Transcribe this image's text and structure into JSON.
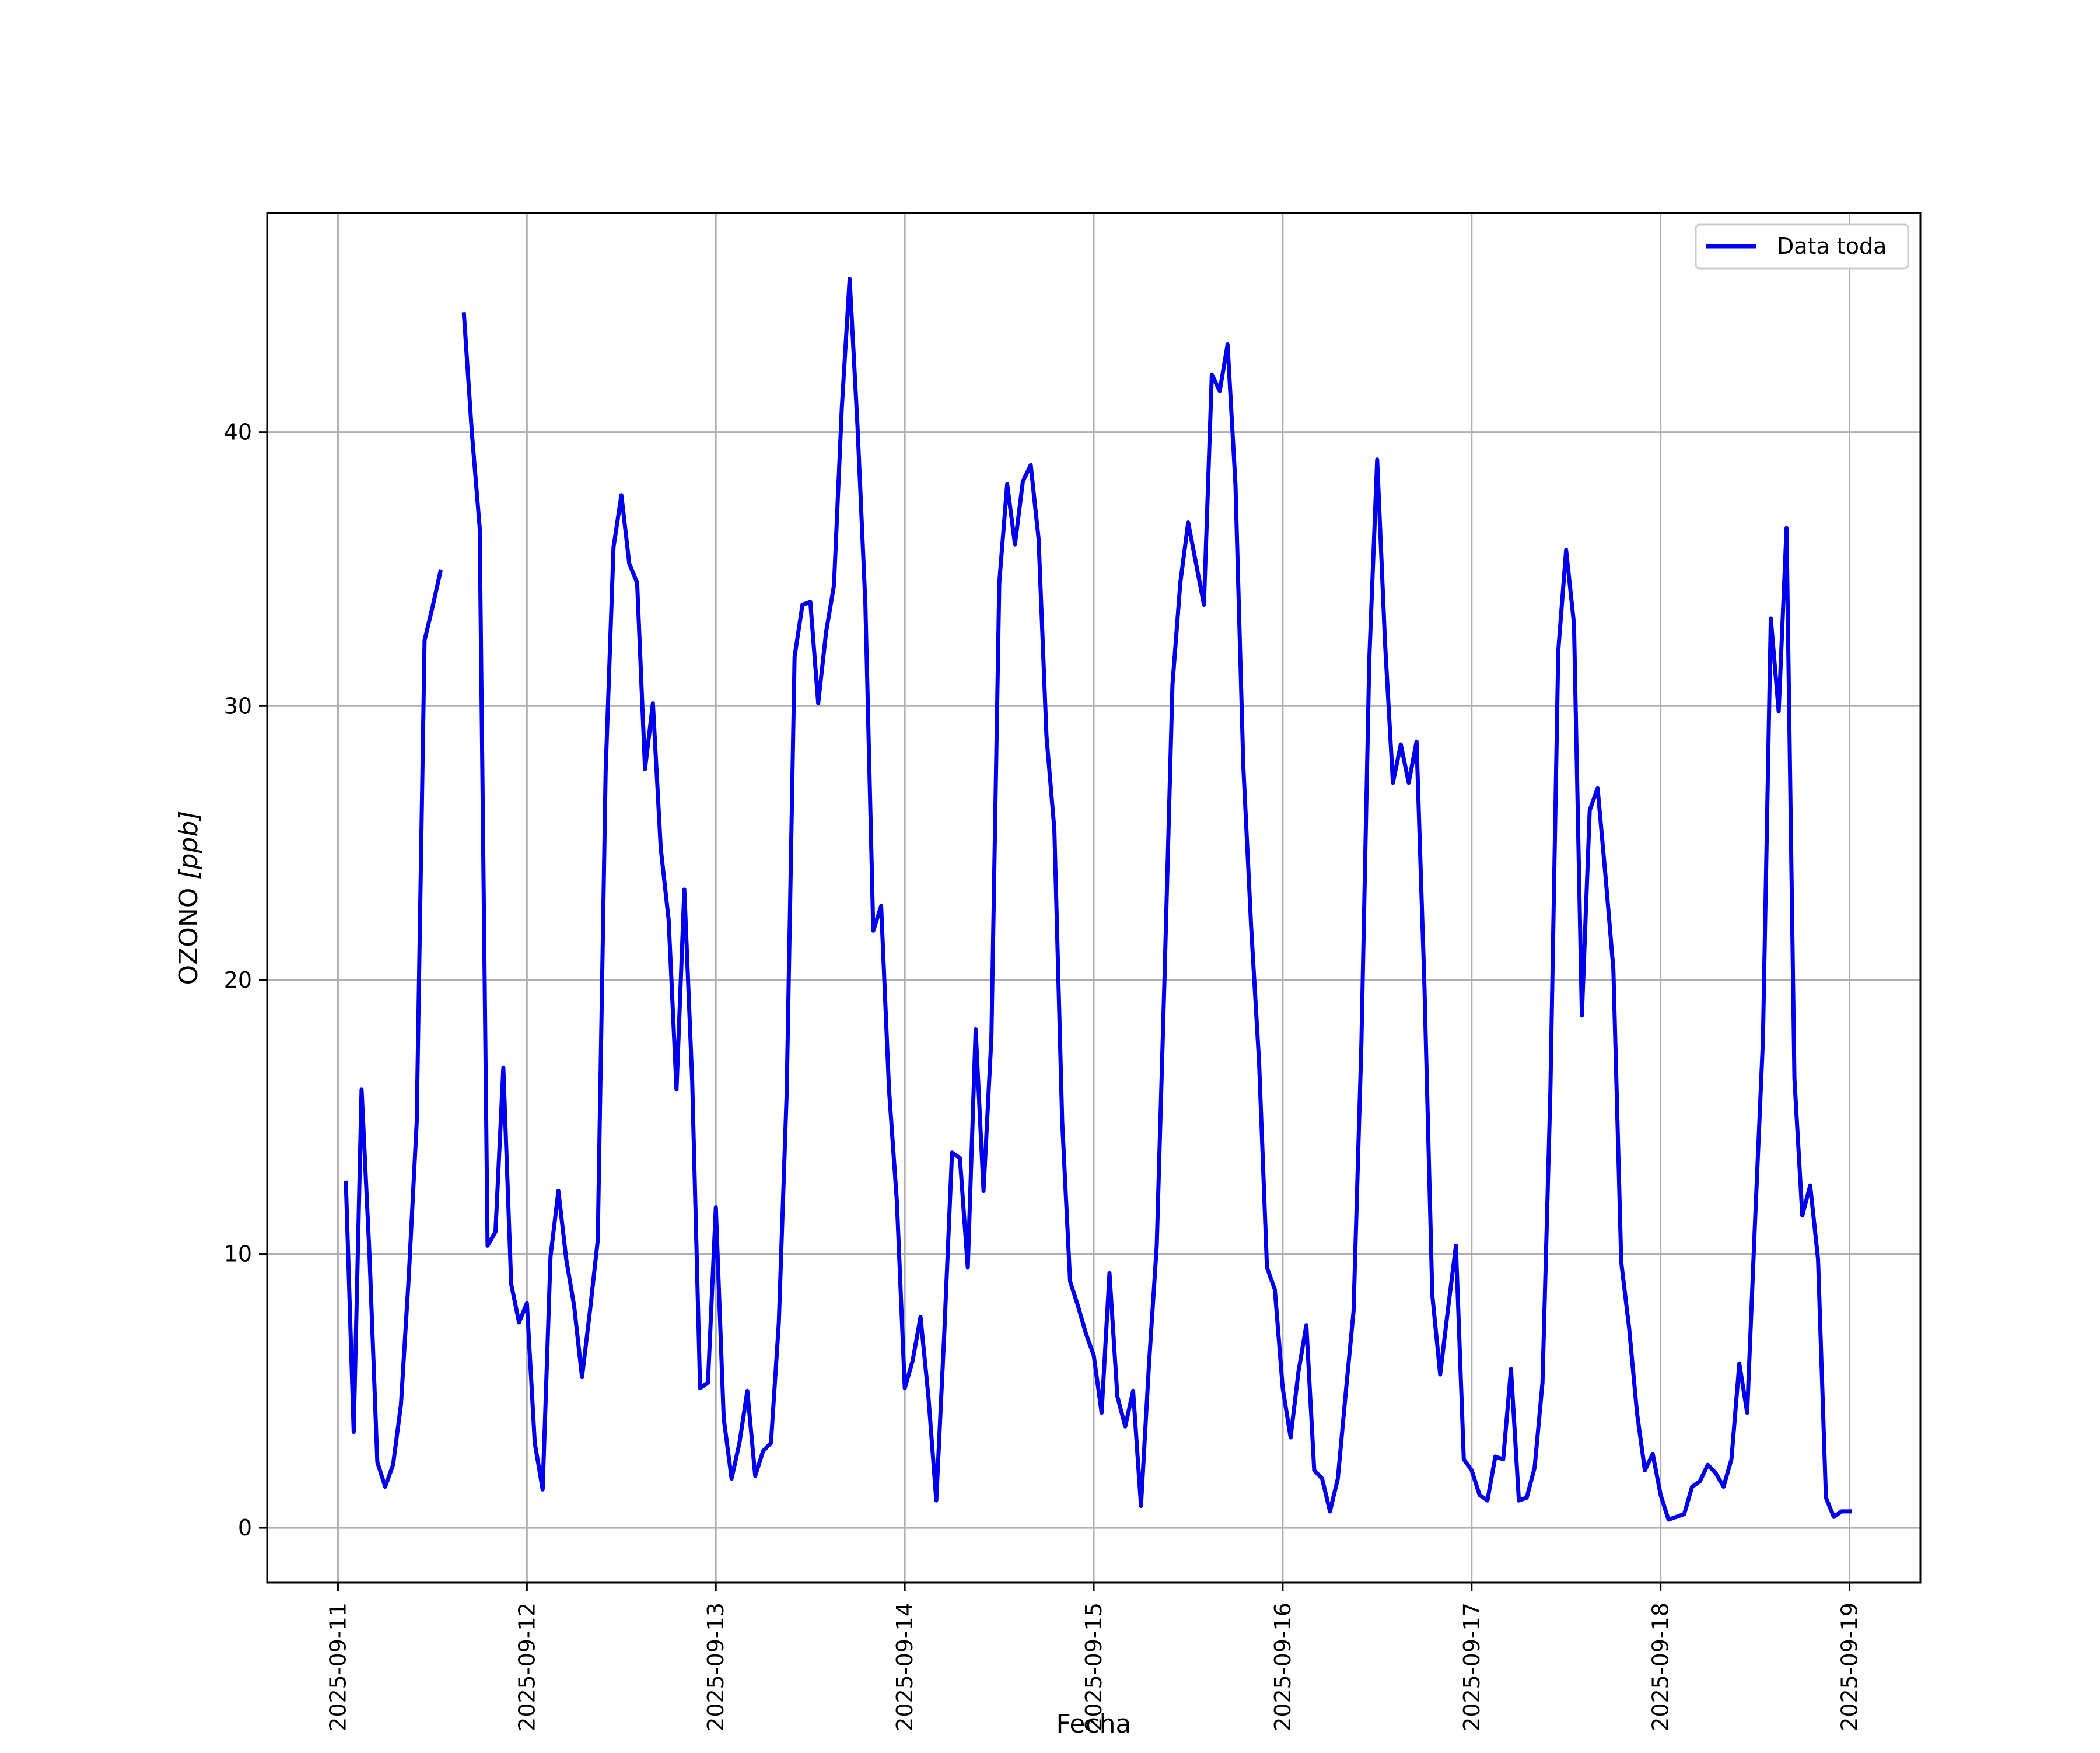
{
  "chart_data": {
    "type": "line",
    "title": "",
    "xlabel": "Fecha",
    "ylabel": "OZONO [ppb]",
    "ylabel_main": "OZONO ",
    "ylabel_unit": "[ppb]",
    "xlim": [
      "2025-09-10T15:00",
      "2025-09-19T09:00"
    ],
    "ylim": [
      -2,
      48
    ],
    "grid": true,
    "legend_position": "top-right",
    "x_ticks": [
      "2025-09-11",
      "2025-09-12",
      "2025-09-13",
      "2025-09-14",
      "2025-09-15",
      "2025-09-16",
      "2025-09-17",
      "2025-09-18",
      "2025-09-19"
    ],
    "y_ticks": [
      0,
      10,
      20,
      30,
      40
    ],
    "colors": {
      "series": "#0000ee",
      "grid": "#b0b0b0",
      "frame": "#000000"
    },
    "series": [
      {
        "name": "Data toda",
        "x_start": "2025-09-11T01:00",
        "x_step_hours": 1,
        "values": [
          12.6,
          3.5,
          16.0,
          10.0,
          2.4,
          1.5,
          2.3,
          4.5,
          9.2,
          14.8,
          32.4,
          33.6,
          34.9,
          null,
          null,
          44.3,
          40.0,
          36.5,
          10.3,
          10.8,
          16.8,
          8.9,
          7.5,
          8.2,
          3.1,
          1.4,
          9.9,
          12.3,
          9.8,
          8.1,
          5.5,
          7.9,
          10.5,
          27.6,
          35.8,
          37.7,
          35.2,
          34.5,
          27.7,
          30.1,
          24.8,
          22.2,
          16.0,
          23.3,
          16.3,
          5.1,
          5.3,
          11.7,
          4.0,
          1.8,
          3.1,
          5.0,
          1.9,
          2.8,
          3.1,
          7.5,
          15.9,
          31.8,
          33.7,
          33.8,
          30.1,
          32.7,
          34.4,
          40.9,
          45.6,
          40.2,
          33.7,
          21.8,
          22.7,
          16.0,
          11.9,
          5.1,
          6.1,
          7.7,
          4.8,
          1.0,
          7.0,
          13.7,
          13.5,
          9.5,
          18.2,
          12.3,
          17.9,
          34.5,
          38.1,
          35.9,
          38.2,
          38.8,
          36.1,
          28.9,
          25.5,
          14.8,
          9.0,
          8.1,
          7.1,
          6.3,
          4.2,
          9.3,
          4.8,
          3.7,
          5.0,
          0.8,
          5.9,
          10.3,
          20.2,
          30.8,
          34.5,
          36.7,
          35.2,
          33.7,
          42.1,
          41.5,
          43.2,
          38.1,
          27.8,
          21.9,
          17.0,
          9.5,
          8.7,
          5.1,
          3.3,
          5.7,
          7.4,
          2.1,
          1.8,
          0.6,
          1.8,
          4.9,
          7.9,
          17.7,
          31.7,
          39.0,
          32.3,
          27.2,
          28.6,
          27.2,
          28.7,
          19.8,
          8.5,
          5.6,
          8.0,
          10.3,
          2.5,
          2.1,
          1.2,
          1.0,
          2.6,
          2.5,
          5.8,
          1.0,
          1.1,
          2.2,
          5.3,
          15.9,
          32.0,
          35.7,
          33.0,
          18.7,
          26.2,
          27.0,
          23.8,
          20.4,
          9.7,
          7.3,
          4.2,
          2.1,
          2.7,
          1.2,
          0.3,
          0.4,
          0.5,
          1.5,
          1.7,
          2.3,
          2.0,
          1.5,
          2.5,
          6.0,
          4.2,
          11.2,
          17.8,
          33.2,
          29.8,
          36.5,
          16.4,
          11.4,
          12.5,
          9.8,
          1.1,
          0.4,
          0.6,
          0.6
        ]
      }
    ]
  }
}
